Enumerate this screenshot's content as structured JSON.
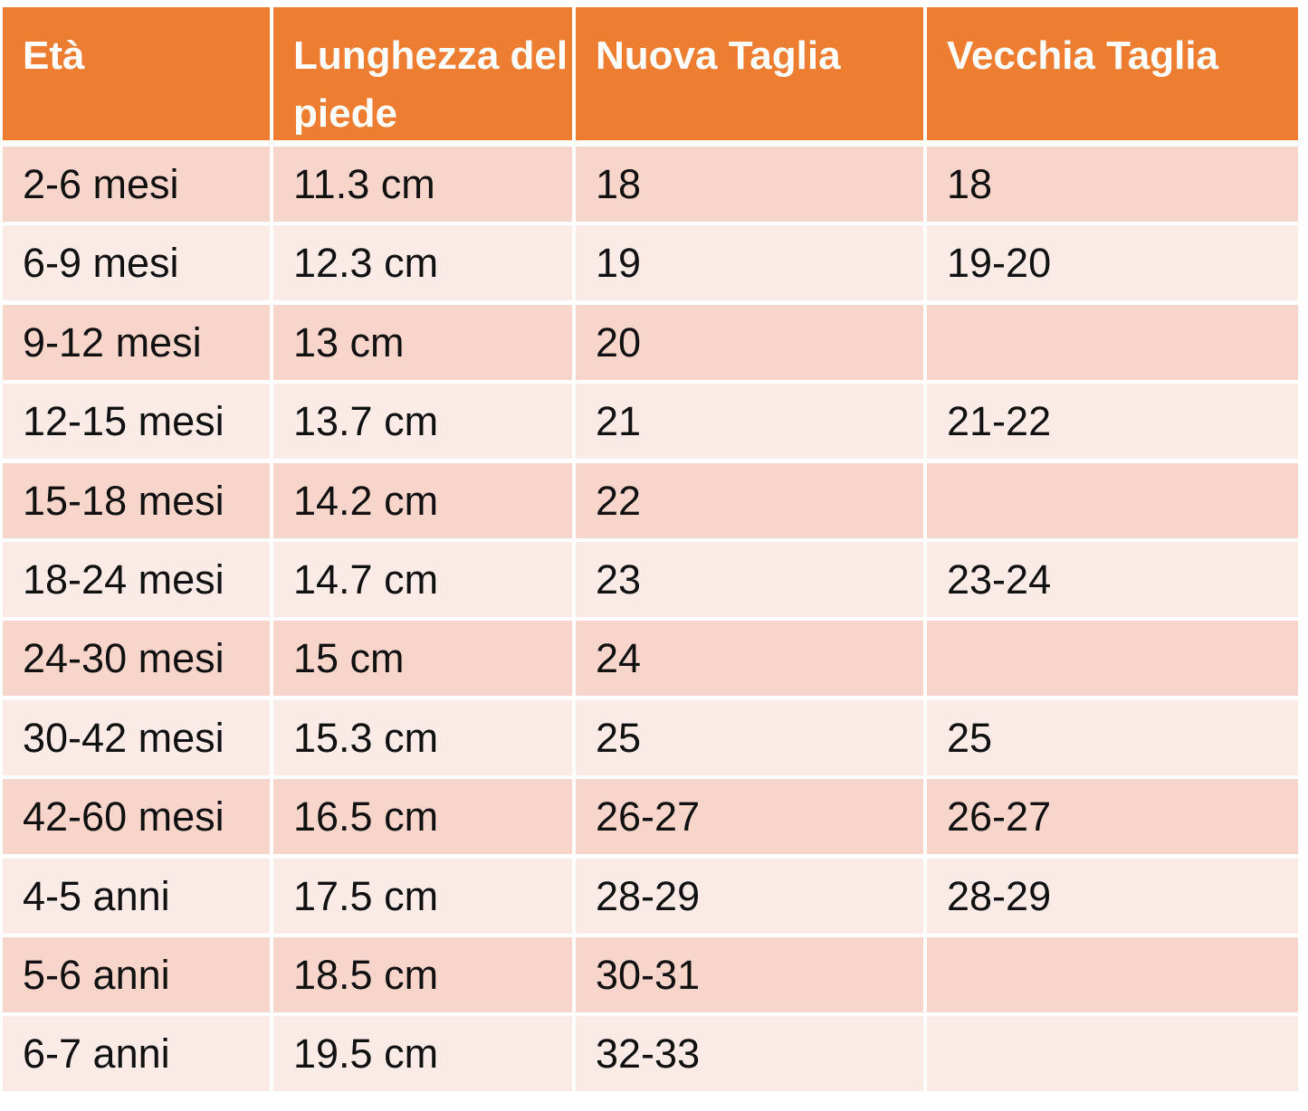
{
  "table": {
    "header": [
      "Età",
      "Lunghezza del piede",
      "Nuova Taglia",
      "Vecchia Taglia"
    ],
    "rows": [
      [
        "2-6 mesi",
        "11.3 cm",
        "18",
        "18"
      ],
      [
        "6-9 mesi",
        "12.3 cm",
        "19",
        "19-20"
      ],
      [
        "9-12 mesi",
        "13 cm",
        "20",
        null
      ],
      [
        "12-15 mesi",
        "13.7 cm",
        "21",
        "21-22"
      ],
      [
        "15-18 mesi",
        "14.2 cm",
        "22",
        null
      ],
      [
        "18-24 mesi",
        "14.7 cm",
        "23",
        "23-24"
      ],
      [
        "24-30 mesi",
        "15 cm",
        "24",
        null
      ],
      [
        "30-42 mesi",
        "15.3 cm",
        "25",
        "25"
      ],
      [
        "42-60 mesi",
        "16.5 cm",
        "26-27",
        "26-27"
      ],
      [
        "4-5 anni",
        "17.5 cm",
        "28-29",
        "28-29"
      ],
      [
        "5-6 anni",
        "18.5 cm",
        "30-31",
        null
      ],
      [
        "6-7 anni",
        "19.5 cm",
        "32-33",
        null
      ]
    ]
  }
}
